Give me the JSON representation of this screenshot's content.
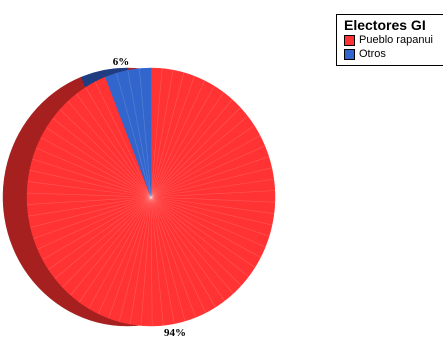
{
  "chart_data": {
    "type": "pie",
    "title": "Electores GI",
    "legend_position": "top-right",
    "slices": [
      {
        "name": "Pueblo rapanui",
        "value": 94,
        "label": "94%",
        "color": "#ff3333",
        "shadow": "#a62020"
      },
      {
        "name": "Otros",
        "value": 6,
        "label": "6%",
        "color": "#3366cc",
        "shadow": "#1f3d80"
      }
    ]
  }
}
